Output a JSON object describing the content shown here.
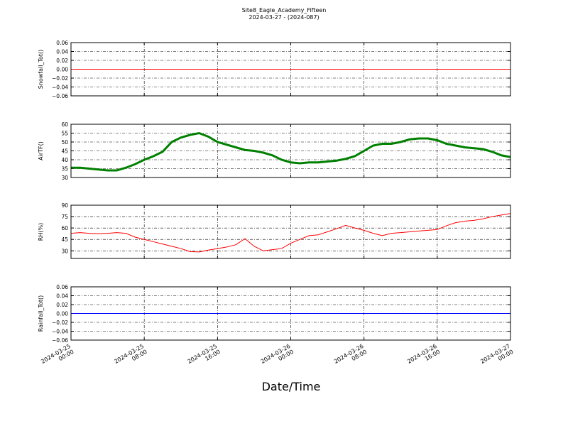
{
  "title": "Site8_Eagle_Academy_Fifteen",
  "subtitle": "2024-03-27 - (2024-087)",
  "xlabel": "Date/Time",
  "xlim": [
    "2024-03-25 00:00",
    "2024-03-27 00:00"
  ],
  "xticks": [
    "2024-03-25 00:00",
    "2024-03-25 08:00",
    "2024-03-25 16:00",
    "2024-03-26 00:00",
    "2024-03-26 08:00",
    "2024-03-26 16:00",
    "2024-03-27 00:00"
  ],
  "grid": true,
  "chart_data": [
    {
      "type": "line",
      "ylabel": "Snowfall_Tot()",
      "x": [
        "2024-03-25 00:00",
        "2024-03-27 00:00"
      ],
      "series": [
        {
          "name": "Snowfall_Tot",
          "color": "#ff0000",
          "values": [
            0,
            0
          ]
        }
      ],
      "ylim": [
        -0.06,
        0.06
      ],
      "yticks": [
        {
          "value": -0.06,
          "label": "−0.06"
        },
        {
          "value": -0.04,
          "label": "−0.04"
        },
        {
          "value": -0.02,
          "label": "−0.02"
        },
        {
          "value": 0,
          "label": "0.00"
        },
        0.02,
        0.04,
        0.06
      ]
    },
    {
      "type": "line",
      "ylabel": "AirTF()",
      "x": [
        "2024-03-25 00:00",
        "2024-03-25 01:00",
        "2024-03-25 02:00",
        "2024-03-25 03:00",
        "2024-03-25 04:00",
        "2024-03-25 05:00",
        "2024-03-25 06:00",
        "2024-03-25 07:00",
        "2024-03-25 08:00",
        "2024-03-25 09:00",
        "2024-03-25 10:00",
        "2024-03-25 11:00",
        "2024-03-25 12:00",
        "2024-03-25 13:00",
        "2024-03-25 14:00",
        "2024-03-25 15:00",
        "2024-03-25 16:00",
        "2024-03-25 17:00",
        "2024-03-25 18:00",
        "2024-03-25 19:00",
        "2024-03-25 20:00",
        "2024-03-25 21:00",
        "2024-03-25 22:00",
        "2024-03-25 23:00",
        "2024-03-26 00:00",
        "2024-03-26 01:00",
        "2024-03-26 02:00",
        "2024-03-26 03:00",
        "2024-03-26 04:00",
        "2024-03-26 05:00",
        "2024-03-26 06:00",
        "2024-03-26 07:00",
        "2024-03-26 08:00",
        "2024-03-26 09:00",
        "2024-03-26 10:00",
        "2024-03-26 11:00",
        "2024-03-26 12:00",
        "2024-03-26 13:00",
        "2024-03-26 14:00",
        "2024-03-26 15:00",
        "2024-03-26 16:00",
        "2024-03-26 17:00",
        "2024-03-26 18:00",
        "2024-03-26 19:00",
        "2024-03-26 20:00",
        "2024-03-26 21:00",
        "2024-03-26 22:00",
        "2024-03-26 23:00",
        "2024-03-27 00:00"
      ],
      "series": [
        {
          "name": "AirTF",
          "color": "#008000",
          "values": [
            35.5,
            35.5,
            35,
            34.5,
            34,
            34,
            35.5,
            37.5,
            40,
            42,
            44.5,
            50,
            52.5,
            54,
            55,
            53,
            50,
            48.5,
            47,
            45.5,
            45,
            44,
            42.5,
            40,
            38.5,
            38,
            38.5,
            38.5,
            39,
            39.5,
            40.5,
            42,
            45,
            48,
            49,
            49,
            50,
            51.5,
            52,
            52,
            51,
            49,
            48,
            47,
            46.5,
            46,
            44.5,
            42.5,
            41.5
          ]
        }
      ],
      "ylim": [
        30,
        60
      ],
      "yticks": [
        30,
        35,
        40,
        45,
        50,
        55,
        60
      ]
    },
    {
      "type": "line",
      "ylabel": "RH(%)",
      "x": [
        "2024-03-25 00:00",
        "2024-03-25 01:00",
        "2024-03-25 02:00",
        "2024-03-25 03:00",
        "2024-03-25 04:00",
        "2024-03-25 05:00",
        "2024-03-25 06:00",
        "2024-03-25 07:00",
        "2024-03-25 08:00",
        "2024-03-25 09:00",
        "2024-03-25 10:00",
        "2024-03-25 11:00",
        "2024-03-25 12:00",
        "2024-03-25 13:00",
        "2024-03-25 14:00",
        "2024-03-25 15:00",
        "2024-03-25 16:00",
        "2024-03-25 17:00",
        "2024-03-25 18:00",
        "2024-03-25 19:00",
        "2024-03-25 20:00",
        "2024-03-25 21:00",
        "2024-03-25 22:00",
        "2024-03-25 23:00",
        "2024-03-26 00:00",
        "2024-03-26 01:00",
        "2024-03-26 02:00",
        "2024-03-26 03:00",
        "2024-03-26 04:00",
        "2024-03-26 05:00",
        "2024-03-26 06:00",
        "2024-03-26 07:00",
        "2024-03-26 08:00",
        "2024-03-26 09:00",
        "2024-03-26 10:00",
        "2024-03-26 11:00",
        "2024-03-26 12:00",
        "2024-03-26 13:00",
        "2024-03-26 14:00",
        "2024-03-26 15:00",
        "2024-03-26 16:00",
        "2024-03-26 17:00",
        "2024-03-26 18:00",
        "2024-03-26 19:00",
        "2024-03-26 20:00",
        "2024-03-26 21:00",
        "2024-03-26 22:00",
        "2024-03-26 23:00",
        "2024-03-27 00:00"
      ],
      "series": [
        {
          "name": "RH",
          "color": "#ff0000",
          "values": [
            53,
            54,
            53,
            52.5,
            53,
            54,
            53,
            48,
            45,
            42,
            39,
            36,
            33,
            29,
            28.5,
            31,
            33,
            35,
            38,
            46,
            36,
            30,
            31.5,
            33,
            40,
            45,
            50,
            51,
            55,
            59,
            63.5,
            60,
            57,
            53,
            50,
            53,
            54,
            55,
            56,
            57,
            58,
            63,
            67,
            69,
            70,
            72,
            75,
            77,
            79
          ]
        }
      ],
      "ylim": [
        20,
        90
      ],
      "yticks": [
        30,
        45,
        60,
        75,
        90
      ]
    },
    {
      "type": "line",
      "ylabel": "Rainfall_Tot()",
      "x": [
        "2024-03-25 00:00",
        "2024-03-27 00:00"
      ],
      "series": [
        {
          "name": "Rainfall_Tot",
          "color": "#0000ff",
          "values": [
            0,
            0
          ]
        }
      ],
      "ylim": [
        -0.06,
        0.06
      ],
      "yticks": [
        {
          "value": -0.06,
          "label": "−0.06"
        },
        {
          "value": -0.04,
          "label": "−0.04"
        },
        {
          "value": -0.02,
          "label": "−0.02"
        },
        {
          "value": 0,
          "label": "0.00"
        },
        0.02,
        0.04,
        0.06
      ]
    }
  ]
}
